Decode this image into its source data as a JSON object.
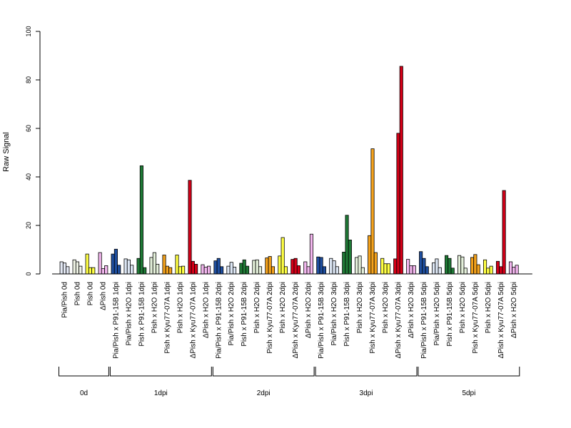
{
  "chart_data": {
    "type": "bar",
    "ylabel": "Raw Signal",
    "ylim": [
      0,
      100
    ],
    "yticks": [
      0,
      20,
      40,
      60,
      80,
      100
    ],
    "palettes": {
      "0d": [
        "#e3e8f4",
        "#eef2e4",
        "#ffff44",
        "#f2b6ee"
      ],
      "dpi": [
        "#1f4fa0",
        "#dce6f4",
        "#1f7a36",
        "#e4f0da",
        "#f4a21c",
        "#ffff44",
        "#d40018",
        "#f2b6ee"
      ]
    },
    "categories": [
      {
        "label": "Pia/Pish 0d",
        "values": [
          5.0,
          4.5,
          3.0
        ],
        "color_index": 0,
        "palette": "0d"
      },
      {
        "label": "Pish 0d",
        "values": [
          5.8,
          5.0,
          3.2
        ],
        "color_index": 1,
        "palette": "0d"
      },
      {
        "label": "Pish 0d",
        "values": [
          8.2,
          2.6,
          2.6
        ],
        "color_index": 2,
        "palette": "0d"
      },
      {
        "label": "ΔPish 0d",
        "values": [
          8.8,
          2.2,
          3.4
        ],
        "color_index": 3,
        "palette": "0d"
      },
      {
        "label": "Pia/Pish x P91-15B 1dpi",
        "values": [
          8.2,
          10.2,
          3.6
        ],
        "color_index": 0,
        "palette": "dpi"
      },
      {
        "label": "Pia/Pish x H2O 1dpi",
        "values": [
          6.2,
          5.8,
          3.6
        ],
        "color_index": 1,
        "palette": "dpi"
      },
      {
        "label": "Pish x P91-15B 1dpi",
        "values": [
          6.4,
          44.6,
          2.6
        ],
        "color_index": 2,
        "palette": "dpi"
      },
      {
        "label": "Pish x H2O 1dpi",
        "values": [
          6.8,
          8.8,
          4.0
        ],
        "color_index": 3,
        "palette": "dpi"
      },
      {
        "label": "Pish x Kyu77-07A 1dpi",
        "values": [
          7.8,
          3.2,
          2.6
        ],
        "color_index": 4,
        "palette": "dpi"
      },
      {
        "label": "Pish x H2O 1dpi",
        "values": [
          7.8,
          3.0,
          3.2
        ],
        "color_index": 5,
        "palette": "dpi"
      },
      {
        "label": "ΔPish x Kyu77-07A 1dpi",
        "values": [
          38.6,
          5.2,
          4.0
        ],
        "color_index": 6,
        "palette": "dpi"
      },
      {
        "label": "ΔPish x H2O 1dpi",
        "values": [
          3.8,
          2.8,
          3.2
        ],
        "color_index": 7,
        "palette": "dpi"
      },
      {
        "label": "Pia/Pish x P91-15B 2dpi",
        "values": [
          5.4,
          6.4,
          3.0
        ],
        "color_index": 0,
        "palette": "dpi"
      },
      {
        "label": "Pia/Pish x H2O 2dpi",
        "values": [
          3.2,
          4.8,
          2.8
        ],
        "color_index": 1,
        "palette": "dpi"
      },
      {
        "label": "Pish x P91-15B 2dpi",
        "values": [
          4.4,
          5.8,
          3.2
        ],
        "color_index": 2,
        "palette": "dpi"
      },
      {
        "label": "Pish x H2O 2dpi",
        "values": [
          5.6,
          5.8,
          3.0
        ],
        "color_index": 3,
        "palette": "dpi"
      },
      {
        "label": "Pish x Kyu77-07A 2dpi",
        "values": [
          6.6,
          7.2,
          3.0
        ],
        "color_index": 4,
        "palette": "dpi"
      },
      {
        "label": "Pish x H2O 2dpi",
        "values": [
          7.4,
          15.0,
          3.0
        ],
        "color_index": 5,
        "palette": "dpi"
      },
      {
        "label": "ΔPish x Kyu77-07A 2dpi",
        "values": [
          6.0,
          6.4,
          3.4
        ],
        "color_index": 6,
        "palette": "dpi"
      },
      {
        "label": "ΔPish x H2O 2dpi",
        "values": [
          5.0,
          3.0,
          16.4
        ],
        "color_index": 7,
        "palette": "dpi"
      },
      {
        "label": "Pia/Pish x P91-15B 3dpi",
        "values": [
          7.0,
          6.8,
          3.0
        ],
        "color_index": 0,
        "palette": "dpi"
      },
      {
        "label": "Pia/Pish x H2O 3dpi",
        "values": [
          6.4,
          5.4,
          3.0
        ],
        "color_index": 1,
        "palette": "dpi"
      },
      {
        "label": "Pish x P91-15B 3dpi",
        "values": [
          9.0,
          24.2,
          14.0
        ],
        "color_index": 2,
        "palette": "dpi"
      },
      {
        "label": "Pish x H2O 3dpi",
        "values": [
          6.8,
          7.4,
          2.6
        ],
        "color_index": 3,
        "palette": "dpi"
      },
      {
        "label": "Pish x Kyu77-07A 3dpi",
        "values": [
          15.8,
          51.6,
          8.8
        ],
        "color_index": 4,
        "palette": "dpi"
      },
      {
        "label": "Pish x H2O 3dpi",
        "values": [
          6.4,
          4.2,
          4.2
        ],
        "color_index": 5,
        "palette": "dpi"
      },
      {
        "label": "ΔPish x Kyu77-07A 3dpi",
        "values": [
          6.2,
          58.0,
          85.6
        ],
        "color_index": 6,
        "palette": "dpi"
      },
      {
        "label": "ΔPish x H2O 3dpi",
        "values": [
          6.0,
          3.4,
          3.4
        ],
        "color_index": 7,
        "palette": "dpi"
      },
      {
        "label": "Pia/Pish x P91-15B 5dpi",
        "values": [
          9.2,
          6.4,
          3.0
        ],
        "color_index": 0,
        "palette": "dpi"
      },
      {
        "label": "Pia/Pish x H2O 5dpi",
        "values": [
          4.6,
          6.2,
          2.6
        ],
        "color_index": 1,
        "palette": "dpi"
      },
      {
        "label": "Pish x P91-15B 5dpi",
        "values": [
          7.6,
          6.4,
          2.4
        ],
        "color_index": 2,
        "palette": "dpi"
      },
      {
        "label": "Pish x H2O 5dpi",
        "values": [
          7.6,
          7.0,
          2.4
        ],
        "color_index": 3,
        "palette": "dpi"
      },
      {
        "label": "Pish x Kyu77-07A 5dpi",
        "values": [
          6.8,
          8.0,
          3.8
        ],
        "color_index": 4,
        "palette": "dpi"
      },
      {
        "label": "Pish x H2O 5dpi",
        "values": [
          5.8,
          2.4,
          3.2
        ],
        "color_index": 5,
        "palette": "dpi"
      },
      {
        "label": "ΔPish x Kyu77-07A 5dpi",
        "values": [
          5.2,
          3.0,
          34.4
        ],
        "color_index": 6,
        "palette": "dpi"
      },
      {
        "label": "ΔPish x H2O 5dpi",
        "values": [
          5.0,
          2.8,
          3.6
        ],
        "color_index": 7,
        "palette": "dpi"
      }
    ],
    "groups": [
      {
        "label": "0d",
        "first": 0,
        "last": 3
      },
      {
        "label": "1dpi",
        "first": 4,
        "last": 11
      },
      {
        "label": "2dpi",
        "first": 12,
        "last": 19
      },
      {
        "label": "3dpi",
        "first": 20,
        "last": 27
      },
      {
        "label": "5dpi",
        "first": 28,
        "last": 35
      }
    ]
  }
}
